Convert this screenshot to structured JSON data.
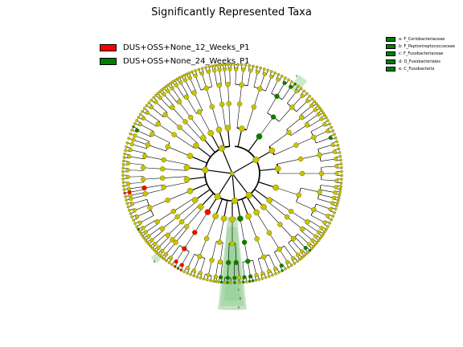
{
  "title": "Significantly Represented Taxa",
  "legend": [
    {
      "label": "DUS+OSS+None_12_Weeks_P1",
      "color": "#ff0000"
    },
    {
      "label": "DUS+OSS+None_24_Weeks_P1",
      "color": "#008000"
    }
  ],
  "clade_legend": [
    {
      "label": "a: F_Coriobacteriaceae",
      "color": "#008000"
    },
    {
      "label": "b: F_Peptostreptococcaceae",
      "color": "#008000"
    },
    {
      "label": "c: F_Fusobacteriaceae",
      "color": "#008000"
    },
    {
      "label": "d: O_Fusobacteriales",
      "color": "#008000"
    },
    {
      "label": "e: C_Fusobacteria",
      "color": "#008000"
    }
  ],
  "clade_letters": [
    "a",
    "b",
    "c",
    "d",
    "e"
  ],
  "colors": {
    "node_default": "#c8c400",
    "node_edge": "#707000",
    "highlight_green": "#008000",
    "highlight_red": "#ff0000",
    "sector_green": "#8fcc8f"
  },
  "diagram": {
    "type": "cladogram",
    "levels": 6
  }
}
